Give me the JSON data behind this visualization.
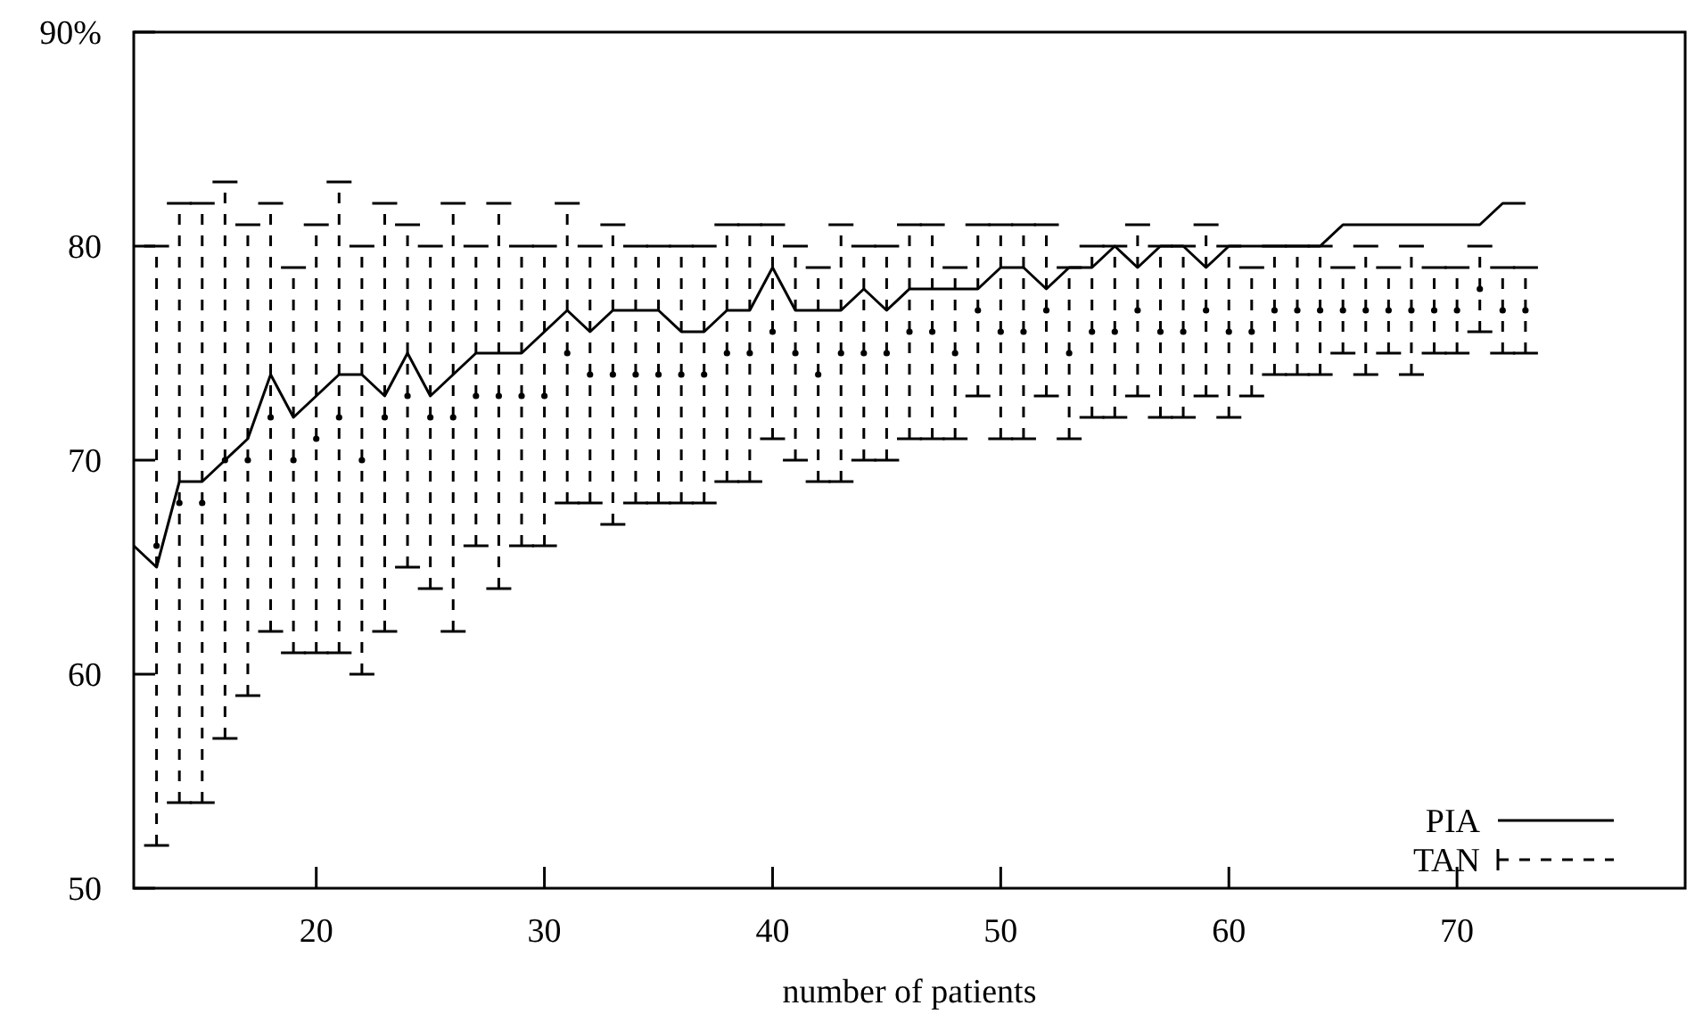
{
  "chart_data": {
    "type": "line",
    "xlabel": "number of patients",
    "xlim": [
      12,
      80
    ],
    "xticks": [
      20,
      30,
      40,
      50,
      60,
      70
    ],
    "ylim": [
      50,
      90
    ],
    "yticks": [
      50,
      60,
      70,
      80,
      {
        "value": 90,
        "label": "90%"
      }
    ],
    "legend": "bottom right",
    "series": [
      {
        "name": "PIA",
        "color": "#000000",
        "line_style": "solid",
        "x": [
          12,
          13,
          14,
          15,
          16,
          17,
          18,
          19,
          20,
          21,
          22,
          23,
          24,
          25,
          26,
          27,
          28,
          29,
          30,
          31,
          32,
          33,
          34,
          35,
          36,
          37,
          38,
          39,
          40,
          41,
          42,
          43,
          44,
          45,
          46,
          47,
          48,
          49,
          50,
          51,
          52,
          53,
          54,
          55,
          56,
          57,
          58,
          59,
          60,
          61,
          62,
          63,
          64,
          65,
          66,
          67,
          68,
          69,
          70,
          71,
          72,
          73
        ],
        "values": [
          66,
          65,
          69,
          69,
          70,
          71,
          74,
          72,
          73,
          74,
          74,
          73,
          75,
          73,
          74,
          75,
          75,
          75,
          76,
          77,
          76,
          77,
          77,
          77,
          76,
          76,
          77,
          77,
          79,
          77,
          77,
          77,
          78,
          77,
          78,
          78,
          78,
          78,
          79,
          79,
          78,
          79,
          79,
          80,
          79,
          80,
          80,
          79,
          80,
          80,
          80,
          80,
          80,
          81,
          81,
          81,
          81,
          81,
          81,
          81,
          82,
          82
        ]
      },
      {
        "name": "TAN",
        "type": "scatter",
        "color": "#000000",
        "line_style": "dashed",
        "x": [
          13,
          14,
          15,
          16,
          17,
          18,
          19,
          20,
          21,
          22,
          23,
          24,
          25,
          26,
          27,
          28,
          29,
          30,
          31,
          32,
          33,
          34,
          35,
          36,
          37,
          38,
          39,
          40,
          41,
          42,
          43,
          44,
          45,
          46,
          47,
          48,
          49,
          50,
          51,
          52,
          53,
          54,
          55,
          56,
          57,
          58,
          59,
          60,
          61,
          62,
          63,
          64,
          65,
          66,
          67,
          68,
          69,
          70,
          71,
          72,
          73
        ],
        "values": [
          66,
          68,
          68,
          70,
          70,
          72,
          70,
          71,
          72,
          70,
          72,
          73,
          72,
          72,
          73,
          73,
          73,
          73,
          75,
          74,
          74,
          74,
          74,
          74,
          74,
          75,
          75,
          76,
          75,
          74,
          75,
          75,
          75,
          76,
          76,
          75,
          77,
          76,
          76,
          77,
          75,
          76,
          76,
          77,
          76,
          76,
          77,
          76,
          76,
          77,
          77,
          77,
          77,
          77,
          77,
          77,
          77,
          77,
          78,
          77,
          77
        ],
        "errors": [
          [
            52,
            80
          ],
          [
            54,
            82
          ],
          [
            54,
            82
          ],
          [
            57,
            83
          ],
          [
            59,
            81
          ],
          [
            62,
            82
          ],
          [
            61,
            79
          ],
          [
            61,
            81
          ],
          [
            61,
            83
          ],
          [
            60,
            80
          ],
          [
            62,
            82
          ],
          [
            65,
            81
          ],
          [
            64,
            80
          ],
          [
            62,
            82
          ],
          [
            66,
            80
          ],
          [
            64,
            82
          ],
          [
            66,
            80
          ],
          [
            66,
            80
          ],
          [
            68,
            82
          ],
          [
            68,
            80
          ],
          [
            67,
            81
          ],
          [
            68,
            80
          ],
          [
            68,
            80
          ],
          [
            68,
            80
          ],
          [
            68,
            80
          ],
          [
            69,
            81
          ],
          [
            69,
            81
          ],
          [
            71,
            81
          ],
          [
            70,
            80
          ],
          [
            69,
            79
          ],
          [
            69,
            81
          ],
          [
            70,
            80
          ],
          [
            70,
            80
          ],
          [
            71,
            81
          ],
          [
            71,
            81
          ],
          [
            71,
            79
          ],
          [
            73,
            81
          ],
          [
            71,
            81
          ],
          [
            71,
            81
          ],
          [
            73,
            81
          ],
          [
            71,
            79
          ],
          [
            72,
            80
          ],
          [
            72,
            80
          ],
          [
            73,
            81
          ],
          [
            72,
            80
          ],
          [
            72,
            80
          ],
          [
            73,
            81
          ],
          [
            72,
            80
          ],
          [
            73,
            79
          ],
          [
            74,
            80
          ],
          [
            74,
            80
          ],
          [
            74,
            80
          ],
          [
            75,
            79
          ],
          [
            74,
            80
          ],
          [
            75,
            79
          ],
          [
            74,
            80
          ],
          [
            75,
            79
          ],
          [
            75,
            79
          ],
          [
            76,
            80
          ],
          [
            75,
            79
          ],
          [
            75,
            79
          ]
        ]
      }
    ]
  }
}
